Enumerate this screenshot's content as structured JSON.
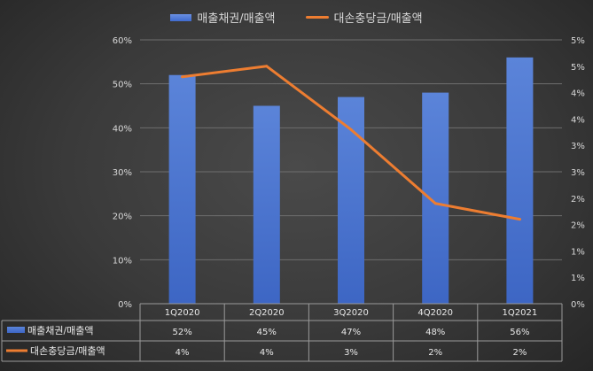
{
  "chart_data": {
    "type": "bar",
    "categories": [
      "1Q2020",
      "2Q2020",
      "3Q2020",
      "4Q2020",
      "1Q2021"
    ],
    "series": [
      {
        "name": "매출채권/매출액",
        "kind": "bar",
        "axis": "left",
        "values": [
          52,
          45,
          47,
          48,
          56
        ],
        "labels": [
          "52%",
          "45%",
          "47%",
          "48%",
          "56%"
        ],
        "color": "#4472c4"
      },
      {
        "name": "대손충당금/매출액",
        "kind": "line",
        "axis": "right",
        "values": [
          4.3,
          4.5,
          3.3,
          1.9,
          1.6
        ],
        "labels": [
          "4%",
          "4%",
          "3%",
          "2%",
          "2%"
        ],
        "color": "#ed7d31"
      }
    ],
    "left_axis": {
      "ylim": [
        0,
        60
      ],
      "ticks": [
        "0%",
        "10%",
        "20%",
        "30%",
        "40%",
        "50%",
        "60%"
      ]
    },
    "right_axis": {
      "ylim": [
        0,
        5
      ],
      "ticks": [
        "0%",
        "1%",
        "1%",
        "2%",
        "2%",
        "3%",
        "3%",
        "4%",
        "4%",
        "5%",
        "5%"
      ]
    },
    "legend_position": "top",
    "data_table": true
  }
}
